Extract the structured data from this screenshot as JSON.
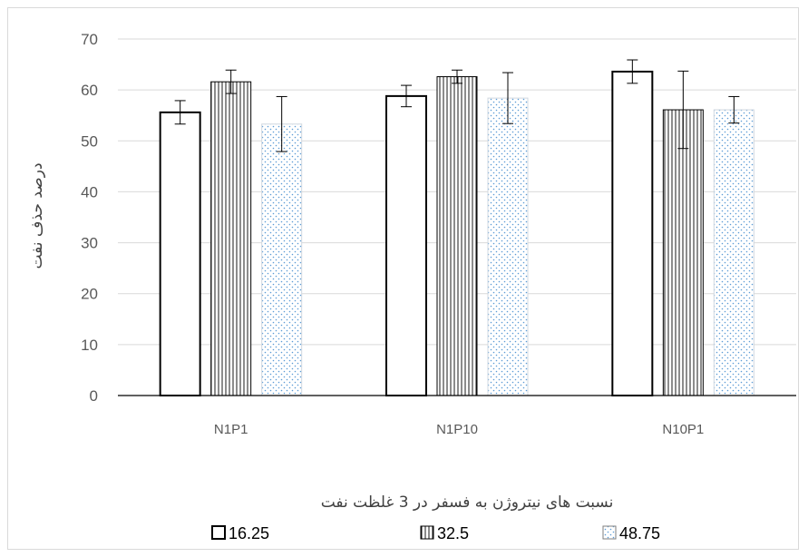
{
  "chart_data": {
    "type": "bar",
    "categories": [
      "N1P1",
      "N1P10",
      "N10P1"
    ],
    "series": [
      {
        "name": "16.25",
        "values": [
          55.6,
          58.8,
          63.6
        ],
        "errors": [
          2.3,
          2.1,
          2.3
        ],
        "pattern": "none"
      },
      {
        "name": "32.5",
        "values": [
          61.6,
          62.6,
          56.1
        ],
        "errors": [
          2.3,
          1.3,
          7.6
        ],
        "pattern": "vertical-lines"
      },
      {
        "name": "48.75",
        "values": [
          53.3,
          58.4,
          56.1
        ],
        "errors": [
          5.4,
          5.0,
          2.6
        ],
        "pattern": "dots"
      }
    ],
    "ylabel": "درصد حذف نفت",
    "xlabel": "نسبت های نیتروژن به فسفر در 3 غلظت نفت",
    "ylim": [
      0,
      70
    ],
    "yticks": [
      "0",
      "10",
      "20",
      "30",
      "40",
      "50",
      "60",
      "70"
    ],
    "grid": true,
    "legend_position": "bottom",
    "colors": {
      "bar_outline": "#000000",
      "grid": "#d9d9d9",
      "dot_fill": "#5b9bd5"
    }
  }
}
